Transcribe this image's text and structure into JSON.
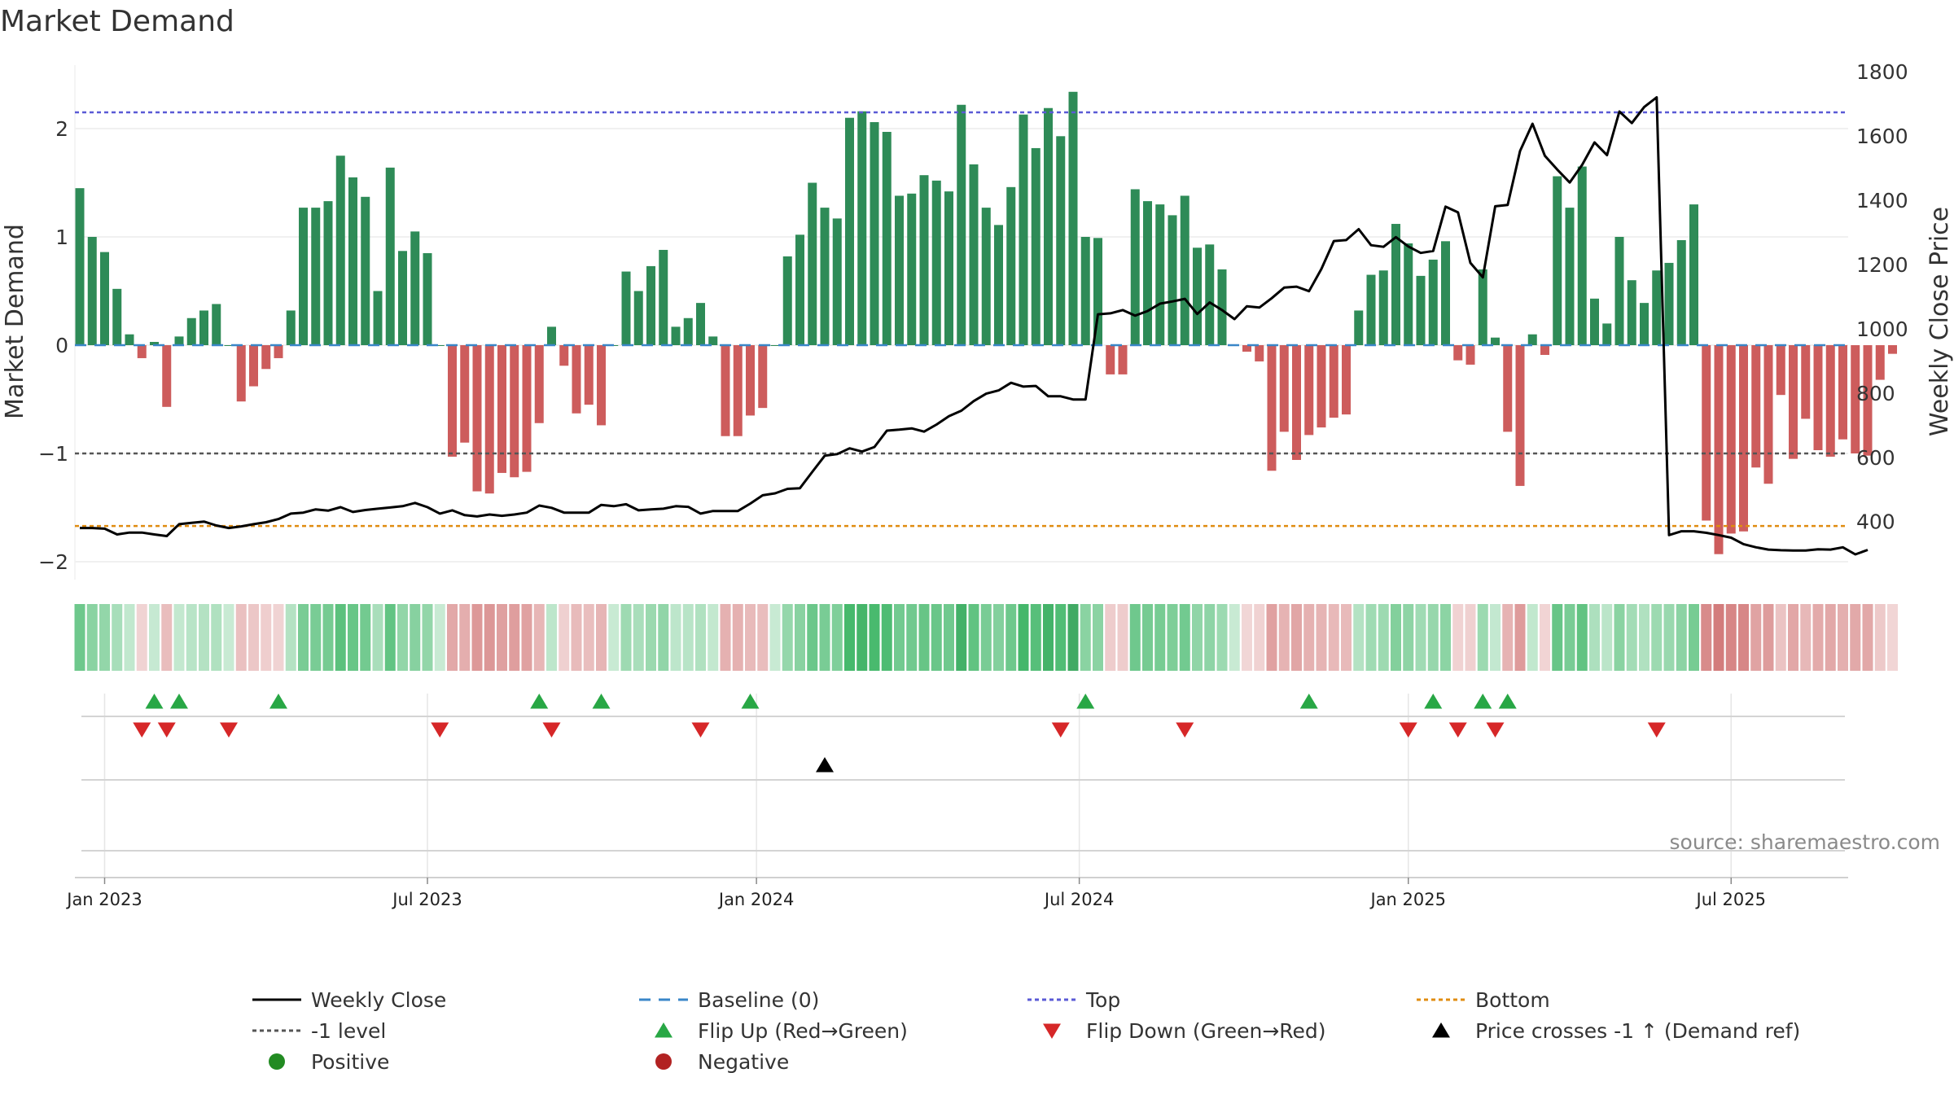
{
  "chart_data": {
    "type": "bar+line",
    "title": "Market Demand",
    "ylabel_left": "Market Demand",
    "ylabel_right": "Weekly Close Price",
    "ylim_left": [
      -2.2,
      2.5
    ],
    "ylim_right": [
      260,
      1800
    ],
    "yticks_left": [
      -2,
      -1,
      0,
      1,
      2
    ],
    "yticks_left_labels": [
      "−2",
      "−1",
      "0",
      "1",
      "2"
    ],
    "yticks_right": [
      400,
      600,
      800,
      1000,
      1200,
      1400,
      1600,
      1800
    ],
    "xticks": [
      {
        "label": "Jan 2023",
        "week": 2
      },
      {
        "label": "Jul 2023",
        "week": 28
      },
      {
        "label": "Jan 2024",
        "week": 54.5
      },
      {
        "label": "Jul 2024",
        "week": 80.5
      },
      {
        "label": "Jan 2025",
        "week": 107
      },
      {
        "label": "Jul 2025",
        "week": 133
      }
    ],
    "reference_lines": {
      "top": 2.15,
      "minus_one": -1,
      "bottom": -1.67,
      "baseline": 0
    },
    "demand": [
      1.45,
      1.0,
      0.86,
      0.52,
      0.1,
      -0.12,
      0.03,
      -0.57,
      0.08,
      0.25,
      0.32,
      0.38,
      0,
      -0.52,
      -0.38,
      -0.22,
      -0.12,
      0.32,
      1.27,
      1.27,
      1.33,
      1.75,
      1.55,
      1.37,
      0.5,
      1.64,
      0.87,
      1.05,
      0.85,
      0,
      -1.03,
      -0.9,
      -1.35,
      -1.37,
      -1.18,
      -1.22,
      -1.17,
      -0.72,
      0.17,
      -0.19,
      -0.63,
      -0.55,
      -0.74,
      0,
      0.68,
      0.5,
      0.73,
      0.88,
      0.17,
      0.25,
      0.39,
      0.08,
      -0.84,
      -0.84,
      -0.65,
      -0.58,
      0,
      0.82,
      1.02,
      1.5,
      1.27,
      1.17,
      2.1,
      2.16,
      2.06,
      1.97,
      1.38,
      1.4,
      1.57,
      1.52,
      1.42,
      2.22,
      1.67,
      1.27,
      1.11,
      1.46,
      2.13,
      1.82,
      2.19,
      1.93,
      2.34,
      1.0,
      0.99,
      -0.27,
      -0.27,
      1.44,
      1.33,
      1.3,
      1.2,
      1.38,
      0.9,
      0.93,
      0.7,
      0,
      -0.06,
      -0.15,
      -1.16,
      -0.8,
      -1.06,
      -0.83,
      -0.76,
      -0.67,
      -0.64,
      0.32,
      0.65,
      0.69,
      1.12,
      0.94,
      0.64,
      0.79,
      0.96,
      -0.14,
      -0.18,
      0.7,
      0.07,
      -0.8,
      -1.3,
      0.1,
      -0.09,
      1.56,
      1.27,
      1.65,
      0.43,
      0.2,
      1.0,
      0.6,
      0.39,
      0.69,
      0.76,
      0.97,
      1.3,
      -1.62,
      -1.93,
      -1.74,
      -1.72,
      -1.13,
      -1.28,
      -0.46,
      -1.05,
      -0.68,
      -0.97,
      -1.03,
      -0.87,
      -1.0,
      -1.02,
      -0.32,
      -0.08
    ],
    "weekly_close": [
      380,
      380,
      378,
      360,
      366,
      366,
      360,
      355,
      392,
      396,
      400,
      388,
      380,
      385,
      392,
      398,
      408,
      425,
      428,
      438,
      434,
      445,
      430,
      436,
      440,
      444,
      448,
      458,
      445,
      425,
      435,
      420,
      416,
      422,
      418,
      422,
      428,
      450,
      443,
      428,
      428,
      428,
      452,
      448,
      454,
      435,
      438,
      440,
      448,
      446,
      425,
      433,
      433,
      433,
      456,
      482,
      488,
      502,
      504,
      555,
      605,
      610,
      628,
      618,
      632,
      683,
      686,
      690,
      680,
      702,
      728,
      745,
      775,
      798,
      808,
      832,
      820,
      822,
      790,
      790,
      780,
      780,
      1045,
      1048,
      1058,
      1041,
      1055,
      1078,
      1085,
      1093,
      1046,
      1082,
      1058,
      1030,
      1070,
      1066,
      1095,
      1128,
      1131,
      1117,
      1186,
      1273,
      1276,
      1310,
      1260,
      1255,
      1285,
      1256,
      1236,
      1242,
      1380,
      1362,
      1205,
      1160,
      1381,
      1385,
      1553,
      1638,
      1538,
      1495,
      1455,
      1510,
      1580,
      1540,
      1676,
      1640,
      1690,
      1720,
      358,
      370,
      370,
      365,
      358,
      350,
      330,
      320,
      313,
      311,
      310,
      310,
      314,
      313,
      320,
      298,
      312
    ],
    "flip_up_weeks": [
      6,
      8,
      16,
      37,
      42,
      54,
      81,
      99,
      109,
      113,
      115
    ],
    "flip_down_weeks": [
      5,
      7,
      12,
      29,
      38,
      50,
      79,
      89,
      107,
      111,
      114,
      127
    ],
    "cross_up_weeks": [
      60
    ],
    "legend": [
      {
        "label": "Weekly Close",
        "style": "line-solid",
        "color": "#000000"
      },
      {
        "label": "Baseline (0)",
        "style": "line-dashed",
        "color": "#3a86c8"
      },
      {
        "label": "Top",
        "style": "line-dotted",
        "color": "#5a5ad6"
      },
      {
        "label": "Bottom",
        "style": "line-dotted",
        "color": "#e08c10"
      },
      {
        "label": "-1 level",
        "style": "line-dotted",
        "color": "#555555"
      },
      {
        "label": "Flip Up (Red→Green)",
        "style": "triangle-up",
        "color": "#28a745"
      },
      {
        "label": "Flip Down (Green→Red)",
        "style": "triangle-down",
        "color": "#d62728"
      },
      {
        "label": "Price crosses -1 ↑ (Demand ref)",
        "style": "triangle-up",
        "color": "#000000"
      },
      {
        "label": "Positive",
        "style": "circle",
        "color": "#228b22"
      },
      {
        "label": "Negative",
        "style": "circle",
        "color": "#b22222"
      }
    ],
    "source": "source: sharemaestro.com"
  },
  "colors": {
    "positive_bar": "#2e8b57",
    "negative_bar": "#cd5c5c",
    "price_line": "#000000",
    "top_line": "#5a5ad6",
    "bottom_line": "#e08c10",
    "minus_one_line": "#555555",
    "baseline": "#3a86c8"
  }
}
